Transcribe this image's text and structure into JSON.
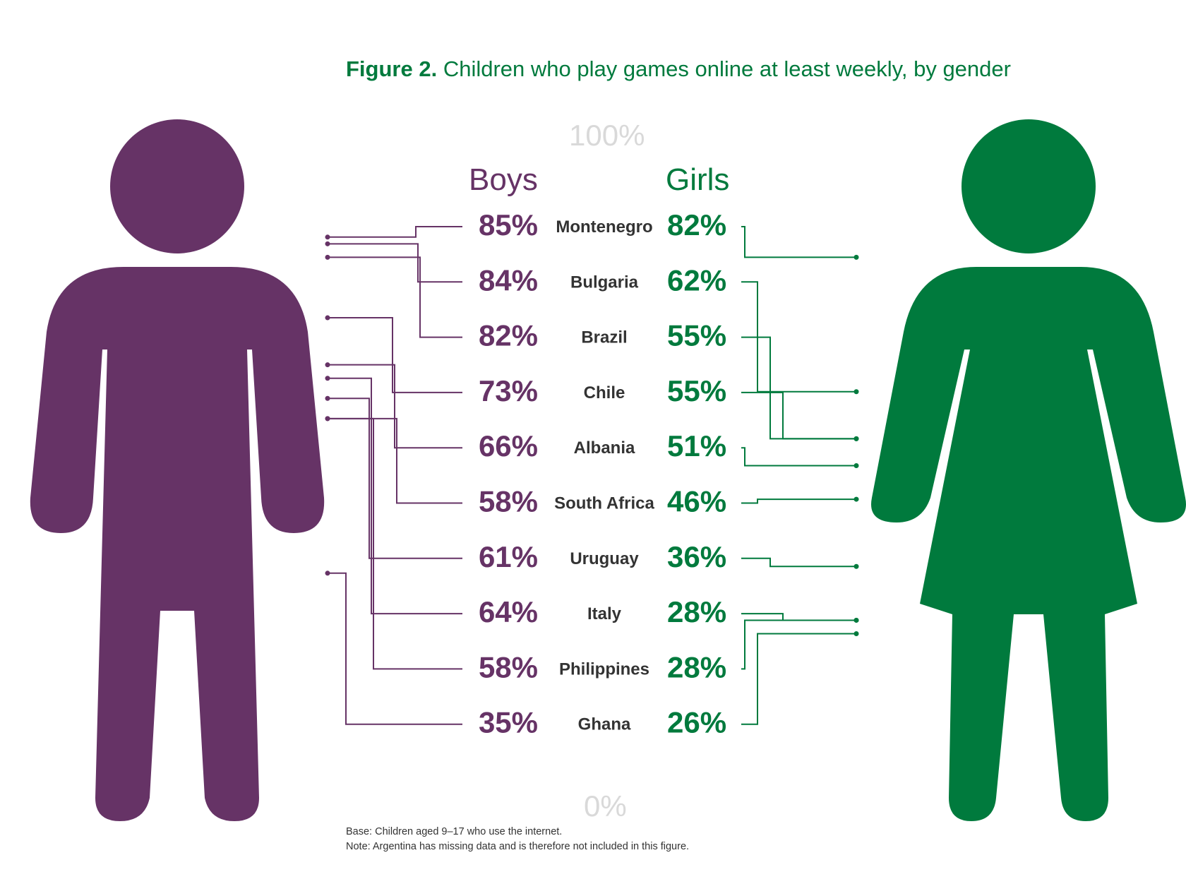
{
  "title": {
    "prefix": "Figure 2.",
    "text": " Children who play games online at least weekly, by gender"
  },
  "scale": {
    "top_label": "100%",
    "bottom_label": "0%",
    "range": [
      0,
      100
    ]
  },
  "colors": {
    "boys": "#663366",
    "girls": "#007a3d",
    "country_text": "#333333",
    "scale_text": "#d9d9d9"
  },
  "icons": {
    "boys": "male-figure-icon",
    "girls": "female-figure-icon"
  },
  "chart_data": {
    "type": "dot",
    "title": "Figure 2. Children who play games online at least weekly, by gender",
    "ylim": [
      0,
      100
    ],
    "categories": [
      "Montenegro",
      "Bulgaria",
      "Brazil",
      "Chile",
      "Albania",
      "South Africa",
      "Uruguay",
      "Italy",
      "Philippines",
      "Ghana"
    ],
    "series": [
      {
        "name": "Boys",
        "labels": [
          "85%",
          "84%",
          "82%",
          "73%",
          "66%",
          "58%",
          "61%",
          "64%",
          "58%",
          "35%"
        ],
        "values": [
          85,
          84,
          82,
          73,
          66,
          58,
          61,
          64,
          58,
          35
        ]
      },
      {
        "name": "Girls",
        "labels": [
          "82%",
          "62%",
          "55%",
          "55%",
          "51%",
          "46%",
          "36%",
          "28%",
          "28%",
          "26%"
        ],
        "values": [
          82,
          62,
          55,
          55,
          51,
          46,
          36,
          28,
          28,
          26
        ]
      }
    ]
  },
  "notes": {
    "base": "Base: Children aged 9–17 who use the internet.",
    "note": "Note: Argentina has missing data and is therefore not included in this figure."
  }
}
